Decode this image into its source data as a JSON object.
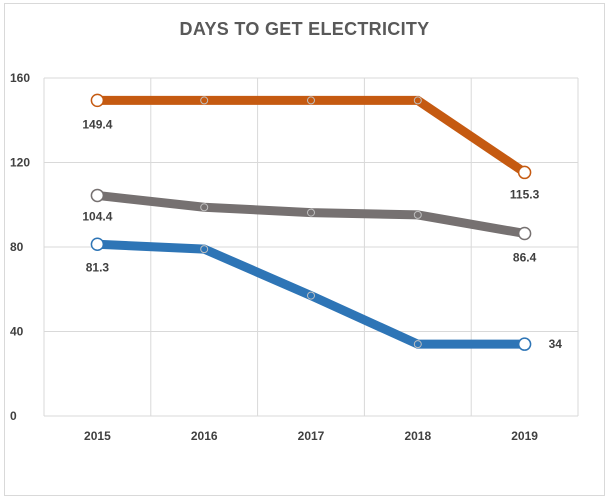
{
  "chart_data": {
    "type": "line",
    "title": "DAYS TO GET ELECTRICITY",
    "xlabel": "",
    "ylabel": "",
    "categories": [
      "2015",
      "2016",
      "2017",
      "2018",
      "2019"
    ],
    "ylim": [
      0,
      160
    ],
    "yticks": [
      0,
      40,
      80,
      120,
      160
    ],
    "grid": true,
    "legend": "none",
    "series": [
      {
        "color": "#c55a11",
        "values": [
          149.4,
          149.4,
          149.4,
          149.4,
          115.3
        ],
        "data_labels": [
          "149.4",
          null,
          null,
          null,
          "115.3"
        ]
      },
      {
        "color": "#767171",
        "values": [
          104.4,
          98.8,
          96.3,
          95.2,
          86.4
        ],
        "data_labels": [
          "104.4",
          null,
          null,
          null,
          "86.4"
        ]
      },
      {
        "color": "#2e75b6",
        "values": [
          81.3,
          79.0,
          57.0,
          34.0,
          34.0
        ],
        "data_labels": [
          "81.3",
          null,
          null,
          null,
          "34"
        ]
      }
    ]
  }
}
